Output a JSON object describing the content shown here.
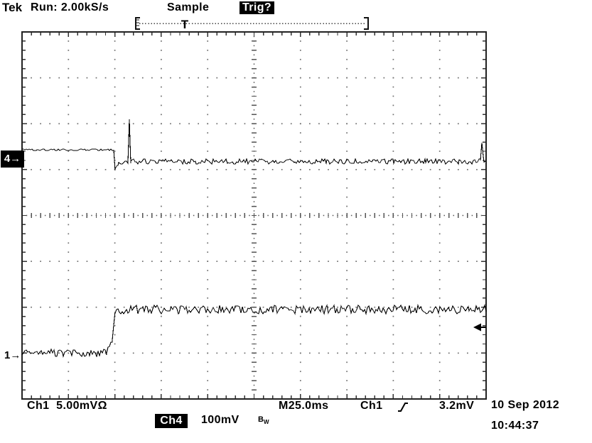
{
  "header": {
    "brand": "Tek",
    "acquisition_status": "Run: 2.00kS/s",
    "acquisition_mode": "Sample",
    "trigger_status": "Trig?"
  },
  "record_view": {
    "trigger_marker": "T"
  },
  "left_markers": {
    "ch4": "4→",
    "ch1": "1→"
  },
  "readouts": {
    "ch1_label": "Ch1",
    "ch1_scale": "5.00mV",
    "ch1_coupling": "Ω",
    "ch4_label": "Ch4",
    "ch4_scale": "100mV",
    "bandwidth_limit": "B",
    "bandwidth_limit_sub": "W",
    "timebase": "M25.0ms",
    "trigger_source": "Ch1",
    "trigger_level": "3.2mV",
    "date": "10 Sep 2012",
    "time": "10:44:37"
  },
  "chart_data": {
    "type": "line",
    "title": "Tektronix oscilloscope waveform display",
    "x_axis": {
      "label": "M25.0ms",
      "ms_per_div": 25.0,
      "divisions": 10,
      "total_span_ms": 250
    },
    "y_axis": {
      "divisions": 8
    },
    "graticule": {
      "cols": 10,
      "rows": 8,
      "minor_per_div": 5
    },
    "sample_step_div": 0.03,
    "segment_format": "[x0_div, x1_div, y0_div_from_top, y1_div_from_top, noise_amplitude_div]",
    "series": [
      {
        "name": "Ch4",
        "vertical_scale": "100mV/div",
        "bandwidth_limited": true,
        "ground_arrow_div": 2.77,
        "noise_seed": 42,
        "segments": [
          [
            0.0,
            1.975,
            2.57,
            2.57,
            0.022
          ],
          [
            1.975,
            2.01,
            2.57,
            3.02,
            0.006
          ],
          [
            2.01,
            2.09,
            3.0,
            2.87,
            0.05
          ],
          [
            2.09,
            2.28,
            2.87,
            2.84,
            0.05
          ],
          [
            2.28,
            2.315,
            2.84,
            1.9,
            0.008
          ],
          [
            2.315,
            2.35,
            1.9,
            2.86,
            0.008
          ],
          [
            2.35,
            9.875,
            2.82,
            2.82,
            0.058
          ],
          [
            9.875,
            9.915,
            2.8,
            2.41,
            0.012
          ],
          [
            9.915,
            9.955,
            2.41,
            2.84,
            0.012
          ],
          [
            9.955,
            10.0,
            2.84,
            2.8,
            0.045
          ]
        ]
      },
      {
        "name": "Ch1",
        "vertical_scale": "5.00mV/div",
        "coupling": "Ω",
        "ground_arrow_div": 7.07,
        "noise_seed": 1337,
        "segments": [
          [
            0.0,
            1.82,
            6.99,
            6.99,
            0.085
          ],
          [
            1.82,
            1.945,
            6.99,
            6.72,
            0.065
          ],
          [
            1.945,
            2.01,
            6.72,
            6.07,
            0.025
          ],
          [
            2.01,
            10.0,
            6.05,
            6.05,
            0.095
          ]
        ]
      }
    ],
    "trigger": {
      "source": "Ch1",
      "slope": "rising",
      "level": "3.2mV",
      "arrow_div_from_top": 6.44,
      "position_marker_x_px": 260
    }
  }
}
